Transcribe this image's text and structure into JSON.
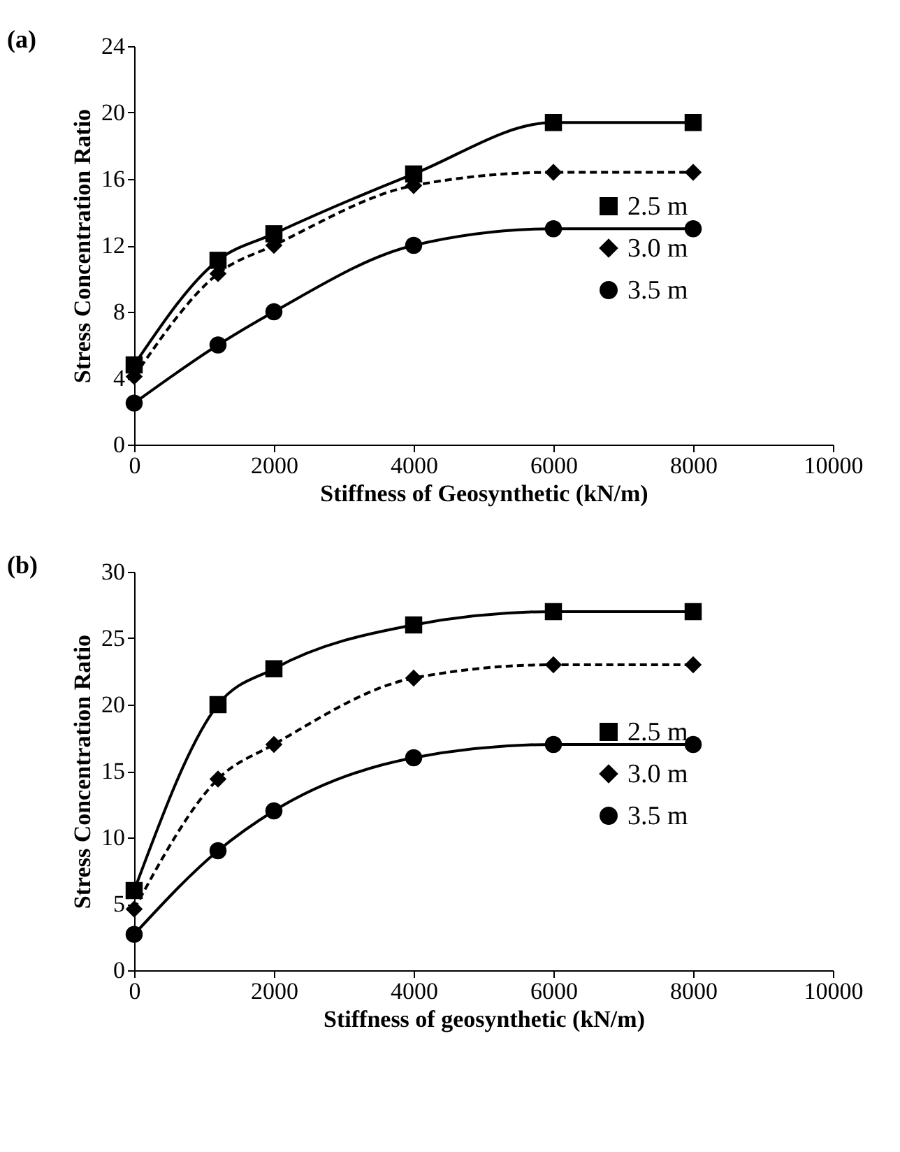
{
  "chart_data": [
    {
      "type": "line",
      "title": "(a)",
      "xlabel": "Stiffness of Geosynthetic (kN/m)",
      "ylabel": "Stress Concentration Ratio",
      "x": [
        0,
        1200,
        2000,
        4000,
        6000,
        8000
      ],
      "xlim": [
        0,
        10000
      ],
      "xticks": [
        0,
        2000,
        4000,
        6000,
        8000,
        10000
      ],
      "ylim": [
        0,
        24
      ],
      "yticks": [
        0,
        4,
        8,
        12,
        16,
        20,
        24
      ],
      "grid": false,
      "legend": "right",
      "series": [
        {
          "name": "2.5 m",
          "color": "#000000",
          "marker": "square",
          "line_style": "solid",
          "values": [
            4.8,
            11.1,
            12.7,
            16.3,
            19.4,
            19.4
          ]
        },
        {
          "name": "3.0 m",
          "color": "#000000",
          "marker": "diamond",
          "line_style": "dashed",
          "values": [
            4.1,
            10.3,
            12.0,
            15.6,
            16.4,
            16.4
          ]
        },
        {
          "name": "3.5 m",
          "color": "#000000",
          "marker": "circle",
          "line_style": "solid",
          "values": [
            2.5,
            6.0,
            8.0,
            12.0,
            13.0,
            13.0
          ]
        }
      ]
    },
    {
      "type": "line",
      "title": "(b)",
      "xlabel": "Stiffness of geosynthetic (kN/m)",
      "ylabel": "Stress Concentration Ratio",
      "x": [
        0,
        1200,
        2000,
        4000,
        6000,
        8000
      ],
      "xlim": [
        0,
        10000
      ],
      "xticks": [
        0,
        2000,
        4000,
        6000,
        8000,
        10000
      ],
      "ylim": [
        0,
        30
      ],
      "yticks": [
        0,
        5,
        10,
        15,
        20,
        25,
        30
      ],
      "grid": false,
      "legend": "right",
      "series": [
        {
          "name": "2.5 m",
          "color": "#000000",
          "marker": "square",
          "line_style": "solid",
          "values": [
            6.0,
            20.0,
            22.7,
            26.0,
            27.0,
            27.0
          ]
        },
        {
          "name": "3.0 m",
          "color": "#000000",
          "marker": "diamond",
          "line_style": "dashed",
          "values": [
            4.6,
            14.4,
            17.0,
            22.0,
            23.0,
            23.0
          ]
        },
        {
          "name": "3.5 m",
          "color": "#000000",
          "marker": "circle",
          "line_style": "solid",
          "values": [
            2.7,
            9.0,
            12.0,
            16.0,
            17.0,
            17.0
          ]
        }
      ]
    }
  ]
}
